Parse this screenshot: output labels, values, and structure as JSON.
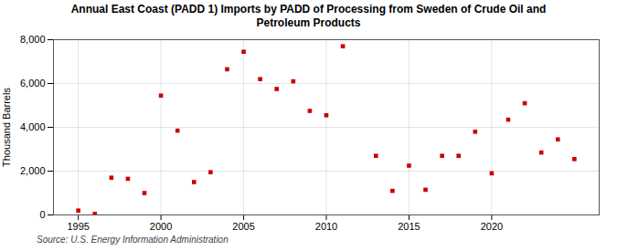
{
  "chart_data": {
    "type": "scatter",
    "title": "Annual East Coast (PADD 1) Imports by PADD of Processing from Sweden of Crude Oil and\nPetroleum Products",
    "ylabel": "Thousand Barrels",
    "source": "Source: U.S. Energy Information Administration",
    "color": "#cc0000",
    "marker": "square",
    "grid": true,
    "x": [
      1995,
      1996,
      1997,
      1998,
      1999,
      2000,
      2001,
      2002,
      2003,
      2004,
      2005,
      2006,
      2007,
      2008,
      2009,
      2010,
      2011,
      2013,
      2014,
      2015,
      2016,
      2017,
      2018,
      2019,
      2020,
      2021,
      2022,
      2023,
      2024,
      2025
    ],
    "values": [
      200,
      50,
      1700,
      1650,
      1000,
      5450,
      3850,
      1500,
      1950,
      6650,
      7450,
      6200,
      5750,
      6100,
      4750,
      4550,
      7700,
      2700,
      1100,
      2250,
      1150,
      2700,
      2700,
      3800,
      1900,
      4350,
      5100,
      2850,
      3450,
      2550
    ],
    "xlim": [
      1993.5,
      2026.5
    ],
    "ylim": [
      0,
      8000
    ],
    "xticks": [
      1995,
      2000,
      2005,
      2010,
      2015,
      2020
    ],
    "yticks": [
      0,
      {
        "value": 2000,
        "label": "2,000"
      },
      {
        "value": 4000,
        "label": "4,000"
      },
      {
        "value": 6000,
        "label": "6,000"
      },
      {
        "value": 8000,
        "label": "8,000"
      }
    ]
  }
}
